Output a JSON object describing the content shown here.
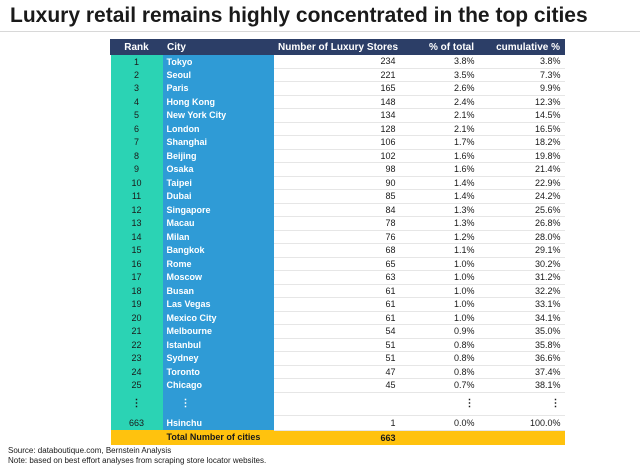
{
  "title": "Luxury retail remains highly concentrated in the top cities",
  "chart_data": {
    "type": "table",
    "columns": [
      "Rank",
      "City",
      "Number of Luxury Stores",
      "% of total",
      "cumulative %"
    ],
    "rows": [
      [
        "1",
        "Tokyo",
        "234",
        "3.8%",
        "3.8%"
      ],
      [
        "2",
        "Seoul",
        "221",
        "3.5%",
        "7.3%"
      ],
      [
        "3",
        "Paris",
        "165",
        "2.6%",
        "9.9%"
      ],
      [
        "4",
        "Hong Kong",
        "148",
        "2.4%",
        "12.3%"
      ],
      [
        "5",
        "New York City",
        "134",
        "2.1%",
        "14.5%"
      ],
      [
        "6",
        "London",
        "128",
        "2.1%",
        "16.5%"
      ],
      [
        "7",
        "Shanghai",
        "106",
        "1.7%",
        "18.2%"
      ],
      [
        "8",
        "Beijing",
        "102",
        "1.6%",
        "19.8%"
      ],
      [
        "9",
        "Osaka",
        "98",
        "1.6%",
        "21.4%"
      ],
      [
        "10",
        "Taipei",
        "90",
        "1.4%",
        "22.9%"
      ],
      [
        "11",
        "Dubai",
        "85",
        "1.4%",
        "24.2%"
      ],
      [
        "12",
        "Singapore",
        "84",
        "1.3%",
        "25.6%"
      ],
      [
        "13",
        "Macau",
        "78",
        "1.3%",
        "26.8%"
      ],
      [
        "14",
        "Milan",
        "76",
        "1.2%",
        "28.0%"
      ],
      [
        "15",
        "Bangkok",
        "68",
        "1.1%",
        "29.1%"
      ],
      [
        "16",
        "Rome",
        "65",
        "1.0%",
        "30.2%"
      ],
      [
        "17",
        "Moscow",
        "63",
        "1.0%",
        "31.2%"
      ],
      [
        "18",
        "Busan",
        "61",
        "1.0%",
        "32.2%"
      ],
      [
        "19",
        "Las Vegas",
        "61",
        "1.0%",
        "33.1%"
      ],
      [
        "20",
        "Mexico City",
        "61",
        "1.0%",
        "34.1%"
      ],
      [
        "21",
        "Melbourne",
        "54",
        "0.9%",
        "35.0%"
      ],
      [
        "22",
        "Istanbul",
        "51",
        "0.8%",
        "35.8%"
      ],
      [
        "23",
        "Sydney",
        "51",
        "0.8%",
        "36.6%"
      ],
      [
        "24",
        "Toronto",
        "47",
        "0.8%",
        "37.4%"
      ],
      [
        "25",
        "Chicago",
        "45",
        "0.7%",
        "38.1%"
      ]
    ],
    "ellipsis": "⋮",
    "last_row": [
      "663",
      "Hsinchu",
      "1",
      "0.0%",
      "100.0%"
    ],
    "total_row": {
      "label": "Total Number of cities",
      "value": "663"
    }
  },
  "notes": {
    "source": "Source: databoutique.com, Bernstein Analysis",
    "note": "Note: based on best effort analyses from scraping store locator websites."
  },
  "colors": {
    "header": "#2c3e67",
    "rank_column": "#2bd3b4",
    "city_column": "#2f9bd6",
    "total_row": "#ffc20e"
  }
}
